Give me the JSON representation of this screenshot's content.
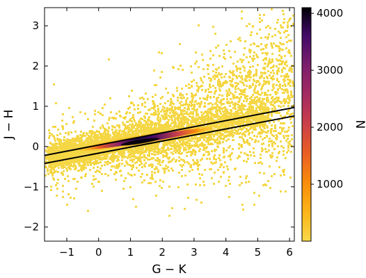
{
  "chart_data": {
    "type": "heatmap",
    "subtype": "2d-density-histogram",
    "xlabel": "G − K",
    "ylabel": "J − H",
    "xlim": [
      -1.7,
      6.15
    ],
    "ylim": [
      -2.35,
      3.45
    ],
    "xticks": [
      -1,
      0,
      1,
      2,
      3,
      4,
      5,
      6
    ],
    "xtick_labels": [
      "−1",
      "0",
      "1",
      "2",
      "3",
      "4",
      "5",
      "6"
    ],
    "yticks": [
      -2,
      -1,
      0,
      1,
      2,
      3
    ],
    "ytick_labels": [
      "−2",
      "−1",
      "0",
      "1",
      "2",
      "3"
    ],
    "colorbar": {
      "label": "N",
      "range": [
        0,
        4100
      ],
      "ticks": [
        1000,
        2000,
        3000,
        4000
      ],
      "tick_labels": [
        "1000",
        "2000",
        "3000",
        "4000"
      ],
      "colormap": "inferno-reversed",
      "low_color": "#f5d745",
      "high_color": "#000004"
    },
    "density_ridge": {
      "x": [
        -0.5,
        0.5,
        1.5,
        2.5,
        3.5
      ],
      "y": [
        -0.05,
        0.07,
        0.15,
        0.27,
        0.41
      ],
      "peak_N": 4100,
      "peak_x": 1.3,
      "peak_y": 0.12
    },
    "lines": [
      {
        "name": "",
        "x": [
          -1.7,
          6.15
        ],
        "y": [
          -0.22,
          0.97
        ],
        "color": "#000000"
      },
      {
        "name": "",
        "x": [
          -1.7,
          6.15
        ],
        "y": [
          -0.42,
          0.76
        ],
        "color": "#000000"
      }
    ],
    "grid": false
  }
}
